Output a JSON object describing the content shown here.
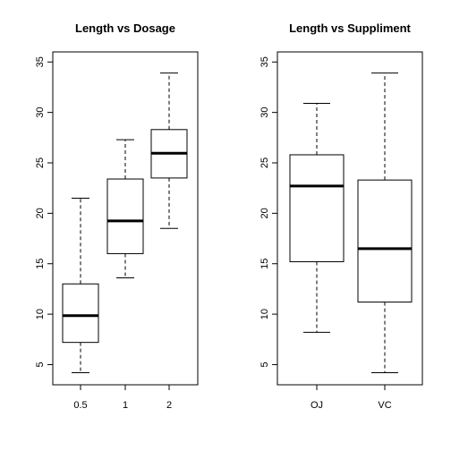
{
  "chart_data": [
    {
      "type": "boxplot",
      "title": "Length vs Dosage",
      "xlabel": "",
      "ylabel": "",
      "ylim": [
        3,
        36
      ],
      "yticks": [
        5,
        10,
        15,
        20,
        25,
        30,
        35
      ],
      "categories": [
        "0.5",
        "1",
        "2"
      ],
      "boxes": [
        {
          "category": "0.5",
          "min": 4.2,
          "q1": 7.2,
          "median": 9.85,
          "q3": 13.0,
          "max": 21.5
        },
        {
          "category": "1",
          "min": 13.6,
          "q1": 16.0,
          "median": 19.25,
          "q3": 23.4,
          "max": 27.3
        },
        {
          "category": "2",
          "min": 18.5,
          "q1": 23.5,
          "median": 25.95,
          "q3": 28.3,
          "max": 33.9
        }
      ]
    },
    {
      "type": "boxplot",
      "title": "Length vs Suppliment",
      "xlabel": "",
      "ylabel": "",
      "ylim": [
        3,
        36
      ],
      "yticks": [
        5,
        10,
        15,
        20,
        25,
        30,
        35
      ],
      "categories": [
        "OJ",
        "VC"
      ],
      "boxes": [
        {
          "category": "OJ",
          "min": 8.2,
          "q1": 15.2,
          "median": 22.7,
          "q3": 25.8,
          "max": 30.9
        },
        {
          "category": "VC",
          "min": 4.2,
          "q1": 11.2,
          "median": 16.5,
          "q3": 23.3,
          "max": 33.9
        }
      ]
    }
  ]
}
